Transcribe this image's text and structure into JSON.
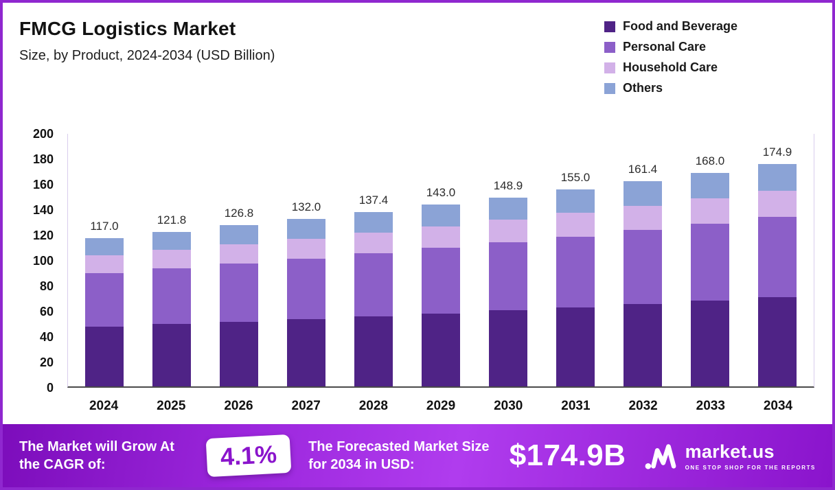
{
  "chart_data": {
    "type": "bar",
    "stacked": true,
    "title": "FMCG Logistics Market",
    "subtitle": "Size, by Product, 2024-2034 (USD Billion)",
    "xlabel": "",
    "ylabel": "",
    "ylim": [
      0,
      200
    ],
    "yticks": [
      0,
      20,
      40,
      60,
      80,
      100,
      120,
      140,
      160,
      180,
      200
    ],
    "grid": false,
    "legend_position": "top-right",
    "categories": [
      "2024",
      "2025",
      "2026",
      "2027",
      "2028",
      "2029",
      "2030",
      "2031",
      "2032",
      "2033",
      "2034"
    ],
    "series": [
      {
        "name": "Food and Beverage",
        "color": "#4f2386",
        "values": [
          47.0,
          49.0,
          51.0,
          53.1,
          55.3,
          57.5,
          59.9,
          62.3,
          64.9,
          67.6,
          70.3
        ]
      },
      {
        "name": "Personal Care",
        "color": "#8c5fc8",
        "values": [
          42.0,
          43.8,
          45.6,
          47.5,
          49.4,
          51.5,
          53.6,
          55.8,
          58.1,
          60.5,
          63.0
        ]
      },
      {
        "name": "Household Care",
        "color": "#d2b1e8",
        "values": [
          14.0,
          14.6,
          15.2,
          15.8,
          16.5,
          17.1,
          17.8,
          18.6,
          19.3,
          20.1,
          20.9
        ]
      },
      {
        "name": "Others",
        "color": "#8ba3d6",
        "values": [
          14.0,
          14.4,
          15.0,
          15.6,
          16.2,
          16.9,
          17.6,
          18.3,
          19.1,
          19.8,
          20.7
        ]
      }
    ],
    "totals": [
      117.0,
      121.8,
      126.8,
      132.0,
      137.4,
      143.0,
      148.9,
      155.0,
      161.4,
      168.0,
      174.9
    ]
  },
  "footer": {
    "cagr_label": "The Market will Grow At the CAGR of:",
    "cagr_value": "4.1%",
    "forecast_label": "The Forecasted Market Size for 2034 in USD:",
    "forecast_value": "$174.9B",
    "brand": "market.us",
    "brand_tagline": "ONE STOP SHOP FOR THE REPORTS"
  }
}
